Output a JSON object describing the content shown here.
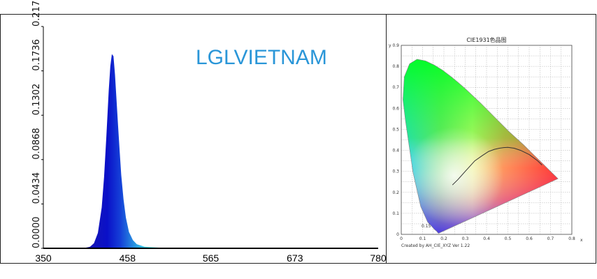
{
  "watermark": "LGLVIETNAM",
  "chart_data": [
    {
      "type": "area",
      "title": "",
      "xlabel": "",
      "ylabel": "",
      "xlim": [
        350,
        780
      ],
      "ylim": [
        0,
        0.217
      ],
      "x_ticks": [
        "350",
        "458",
        "565",
        "673",
        "780"
      ],
      "y_ticks": [
        "0.0000",
        "0.0434",
        "0.0868",
        "0.1302",
        "0.1736",
        "0.2170"
      ],
      "grid": false,
      "series": [
        {
          "x": [
            400,
            410,
            415,
            420,
            425,
            428,
            431,
            434,
            436,
            438,
            440,
            442,
            444,
            446,
            448,
            450,
            453,
            456,
            460,
            465,
            470,
            480,
            500,
            550,
            600
          ],
          "values": [
            0.0,
            0.0015,
            0.005,
            0.015,
            0.04,
            0.07,
            0.11,
            0.155,
            0.178,
            0.19,
            0.188,
            0.17,
            0.145,
            0.12,
            0.095,
            0.072,
            0.048,
            0.03,
            0.016,
            0.008,
            0.004,
            0.0015,
            0.0006,
            0.0002,
            0.0
          ]
        }
      ],
      "colors": {
        "peak": "#0a14c8",
        "tail": "#36e0e8"
      }
    },
    {
      "type": "scatter",
      "title": "CIE1931色品图",
      "xlabel": "x",
      "ylabel": "y",
      "xlim": [
        0,
        0.8
      ],
      "ylim": [
        0,
        0.9
      ],
      "x_ticks": [
        "0",
        "0.1",
        "0.2",
        "0.3",
        "0.4",
        "0.5",
        "0.6",
        "0.7",
        "0.8"
      ],
      "y_ticks": [
        "0",
        "0.1",
        "0.2",
        "0.3",
        "0.4",
        "0.5",
        "0.6",
        "0.7",
        "0.8",
        "0.9"
      ],
      "grid": true,
      "annotation": "Created by AH_CIE_XYZ Ver 1.22",
      "point_label": "0.15",
      "locus": {
        "x": [
          0.175,
          0.171,
          0.166,
          0.155,
          0.145,
          0.124,
          0.091,
          0.055,
          0.02,
          0.008,
          0.014,
          0.039,
          0.074,
          0.114,
          0.155,
          0.193,
          0.23,
          0.266,
          0.302,
          0.373,
          0.441,
          0.507,
          0.575,
          0.627,
          0.666,
          0.692,
          0.714,
          0.735
        ],
        "y": [
          0.005,
          0.008,
          0.015,
          0.024,
          0.036,
          0.058,
          0.133,
          0.295,
          0.539,
          0.641,
          0.75,
          0.812,
          0.834,
          0.826,
          0.806,
          0.782,
          0.754,
          0.724,
          0.692,
          0.624,
          0.555,
          0.488,
          0.425,
          0.373,
          0.334,
          0.308,
          0.286,
          0.265
        ]
      },
      "planckian": {
        "x": [
          0.24,
          0.265,
          0.3,
          0.345,
          0.38,
          0.41,
          0.437,
          0.46,
          0.48,
          0.5,
          0.53,
          0.56,
          0.6,
          0.64,
          0.66
        ],
        "y": [
          0.235,
          0.26,
          0.3,
          0.35,
          0.375,
          0.395,
          0.405,
          0.41,
          0.413,
          0.414,
          0.41,
          0.4,
          0.38,
          0.35,
          0.33
        ]
      }
    }
  ]
}
